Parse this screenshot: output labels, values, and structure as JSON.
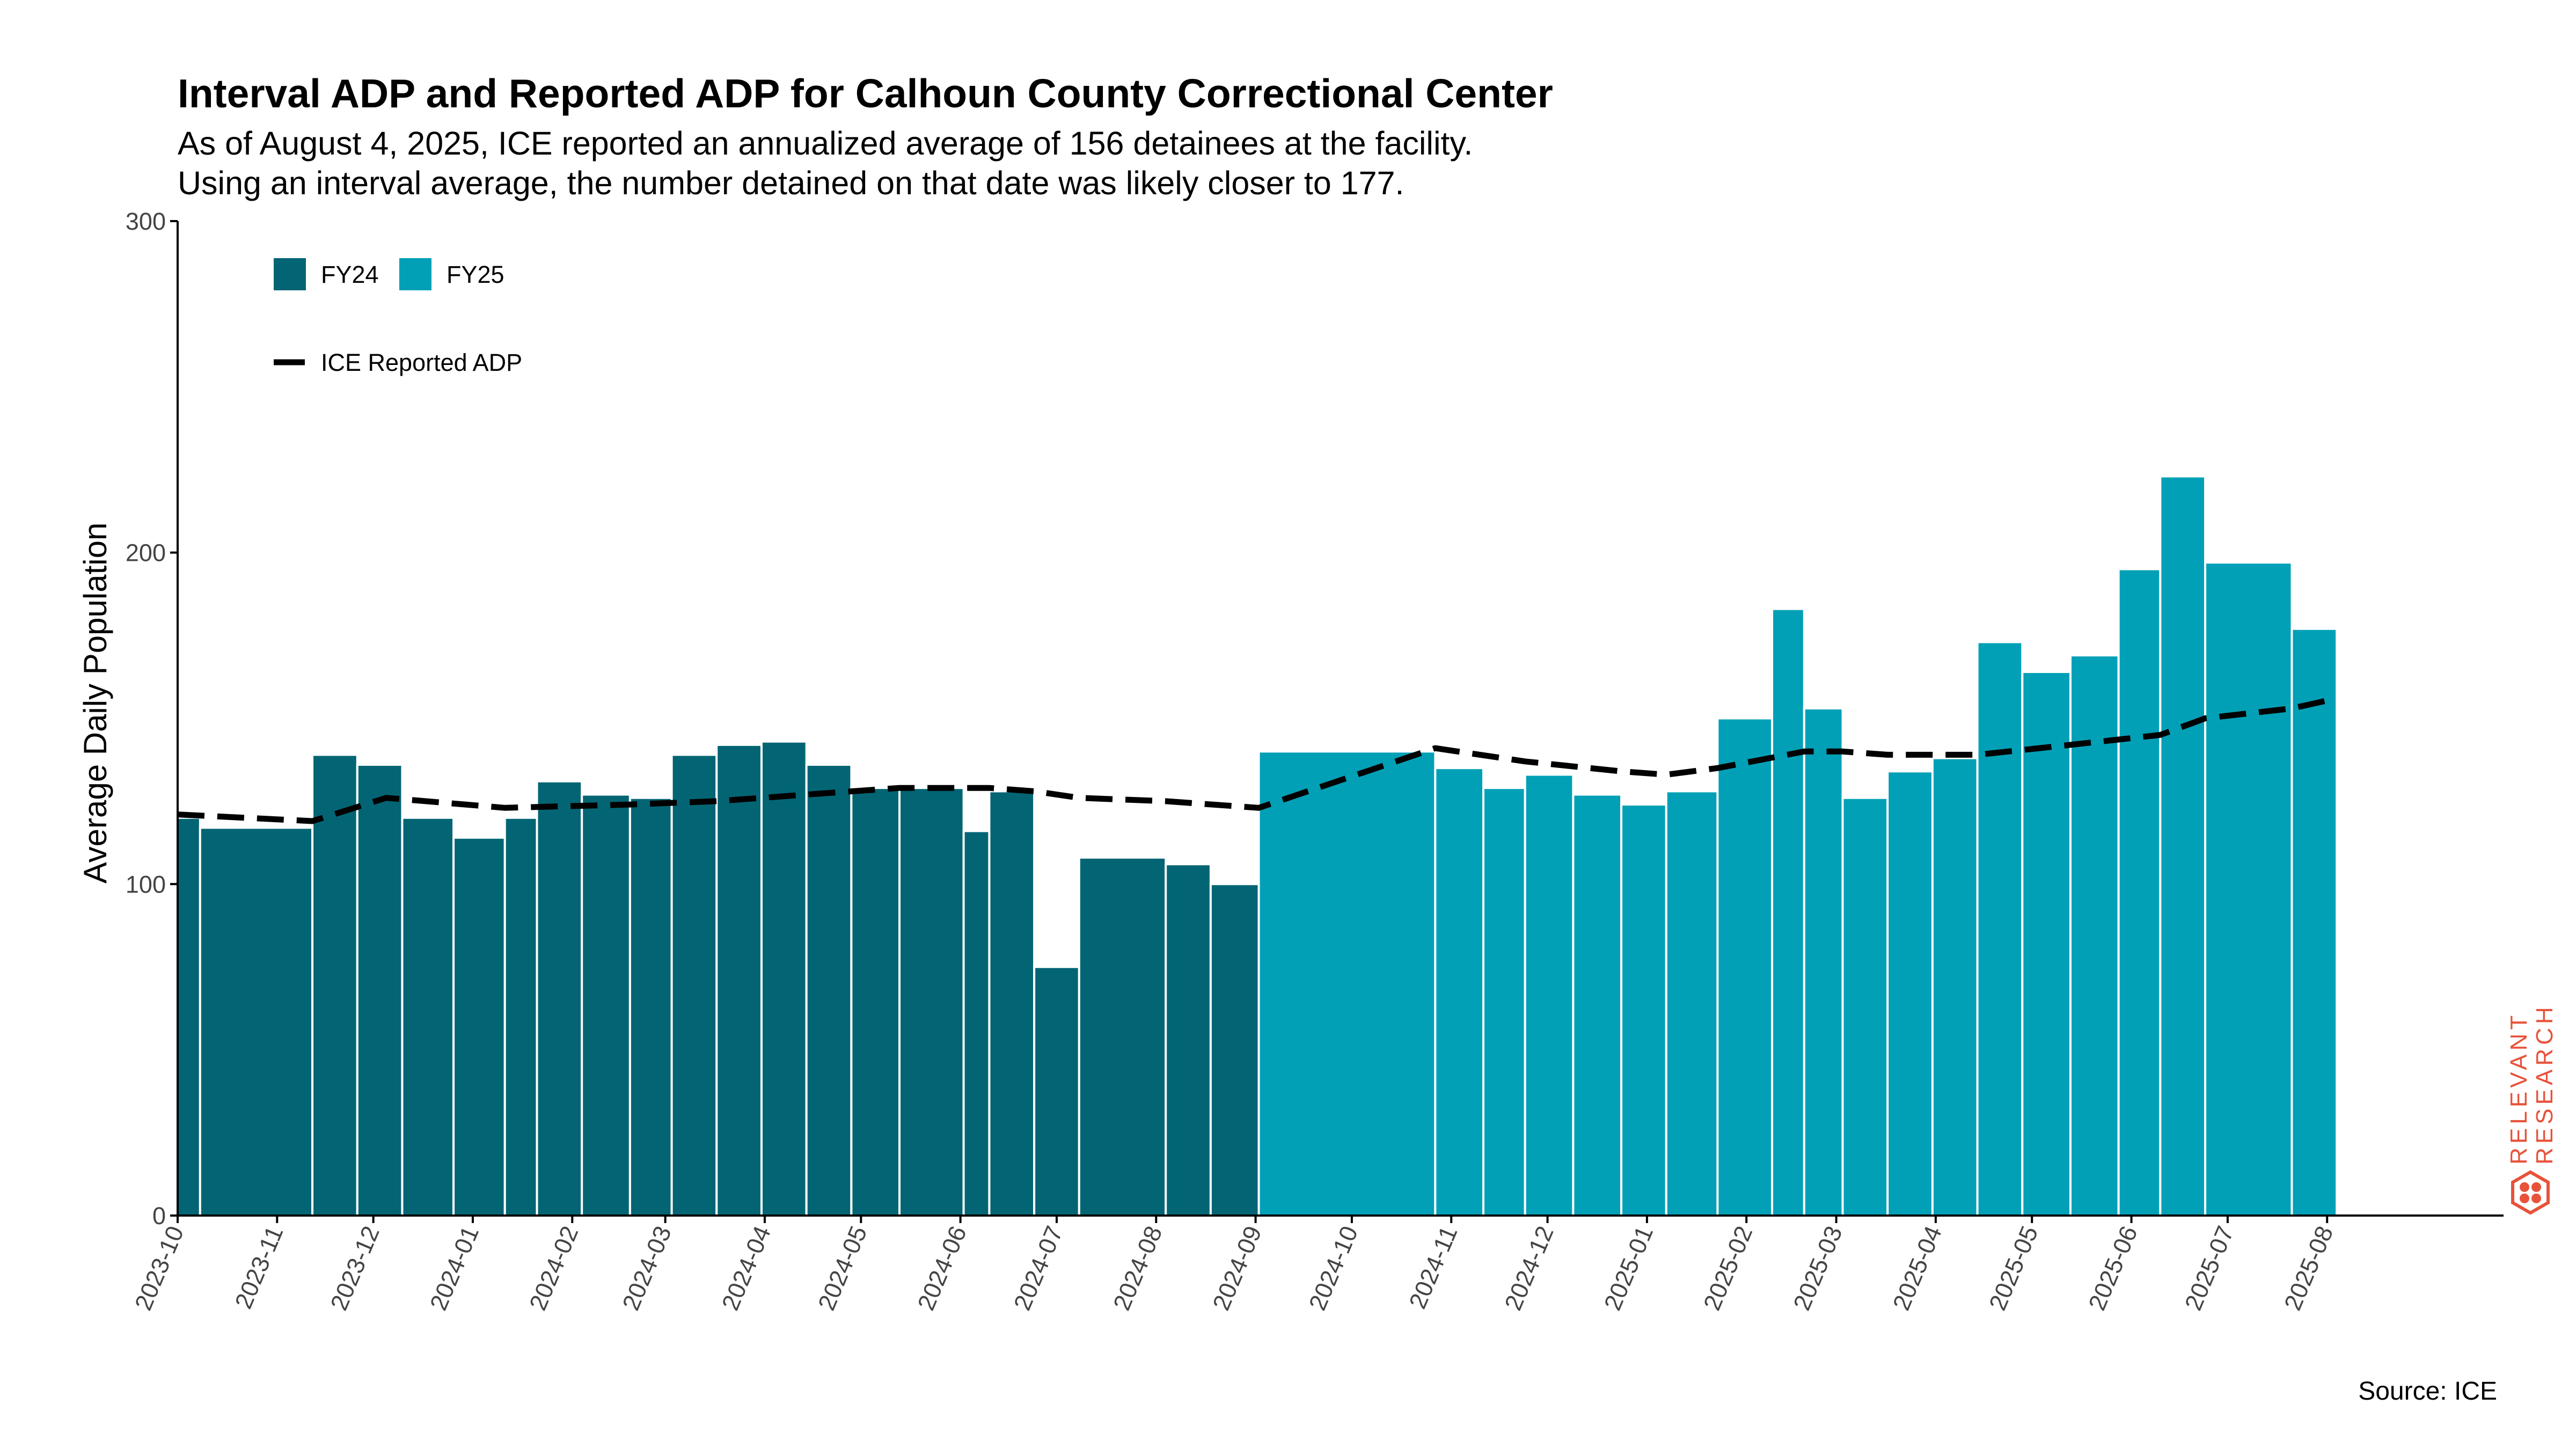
{
  "title": "Interval ADP and Reported ADP for Calhoun County Correctional Center",
  "subtitle_lines": [
    "As of August 4, 2025, ICE reported an annualized average of 156 detainees at the facility.",
    "Using an interval average, the number detained on that date was likely closer to 177."
  ],
  "source": "Source: ICE",
  "logo": {
    "line1": "RELEVANT",
    "line2": "RESEARCH",
    "color": "#e8523a"
  },
  "chart_data": {
    "type": "bar",
    "ylabel": "Average Daily Population",
    "xlabel": "",
    "ylim": [
      0,
      300
    ],
    "yticks": [
      0,
      100,
      200,
      300
    ],
    "xlim": [
      "2023-10-01",
      "2025-09-25"
    ],
    "xticks": [
      "2023-10",
      "2023-11",
      "2023-12",
      "2024-01",
      "2024-02",
      "2024-03",
      "2024-04",
      "2024-05",
      "2024-06",
      "2024-07",
      "2024-08",
      "2024-09",
      "2024-10",
      "2024-11",
      "2024-12",
      "2025-01",
      "2025-02",
      "2025-03",
      "2025-04",
      "2025-05",
      "2025-06",
      "2025-07",
      "2025-08"
    ],
    "legend": {
      "placement": "top-left",
      "items": [
        {
          "label": "FY24",
          "kind": "bar",
          "color": "#036574"
        },
        {
          "label": "FY25",
          "kind": "bar",
          "color": "#02a0b6"
        },
        {
          "label": "ICE Reported ADP",
          "kind": "dashed-line",
          "color": "#000000"
        }
      ]
    },
    "series": [
      {
        "name": "FY24",
        "color": "#036574",
        "intervals": [
          {
            "start": "2023-10-01",
            "end": "2023-10-08",
            "value": 120
          },
          {
            "start": "2023-10-08",
            "end": "2023-11-12",
            "value": 117
          },
          {
            "start": "2023-11-12",
            "end": "2023-11-26",
            "value": 139
          },
          {
            "start": "2023-11-26",
            "end": "2023-12-10",
            "value": 136
          },
          {
            "start": "2023-12-10",
            "end": "2023-12-26",
            "value": 120
          },
          {
            "start": "2023-12-26",
            "end": "2024-01-11",
            "value": 114
          },
          {
            "start": "2024-01-11",
            "end": "2024-01-21",
            "value": 120
          },
          {
            "start": "2024-01-21",
            "end": "2024-02-04",
            "value": 131
          },
          {
            "start": "2024-02-04",
            "end": "2024-02-19",
            "value": 127
          },
          {
            "start": "2024-02-19",
            "end": "2024-03-03",
            "value": 126
          },
          {
            "start": "2024-03-03",
            "end": "2024-03-17",
            "value": 139
          },
          {
            "start": "2024-03-17",
            "end": "2024-03-31",
            "value": 142
          },
          {
            "start": "2024-03-31",
            "end": "2024-04-14",
            "value": 143
          },
          {
            "start": "2024-04-14",
            "end": "2024-04-28",
            "value": 136
          },
          {
            "start": "2024-04-28",
            "end": "2024-05-13",
            "value": 129
          },
          {
            "start": "2024-05-13",
            "end": "2024-06-02",
            "value": 129
          },
          {
            "start": "2024-06-02",
            "end": "2024-06-10",
            "value": 116
          },
          {
            "start": "2024-06-10",
            "end": "2024-06-24",
            "value": 128
          },
          {
            "start": "2024-06-24",
            "end": "2024-07-08",
            "value": 75
          },
          {
            "start": "2024-07-08",
            "end": "2024-08-04",
            "value": 108
          },
          {
            "start": "2024-08-04",
            "end": "2024-08-18",
            "value": 106
          },
          {
            "start": "2024-08-18",
            "end": "2024-09-02",
            "value": 100
          }
        ]
      },
      {
        "name": "FY25",
        "color": "#02a0b6",
        "intervals": [
          {
            "start": "2024-09-02",
            "end": "2024-10-27",
            "value": 140
          },
          {
            "start": "2024-10-27",
            "end": "2024-11-11",
            "value": 135
          },
          {
            "start": "2024-11-11",
            "end": "2024-11-24",
            "value": 129
          },
          {
            "start": "2024-11-24",
            "end": "2024-12-09",
            "value": 133
          },
          {
            "start": "2024-12-09",
            "end": "2024-12-24",
            "value": 127
          },
          {
            "start": "2024-12-24",
            "end": "2025-01-07",
            "value": 124
          },
          {
            "start": "2025-01-07",
            "end": "2025-01-23",
            "value": 128
          },
          {
            "start": "2025-01-23",
            "end": "2025-02-09",
            "value": 150
          },
          {
            "start": "2025-02-09",
            "end": "2025-02-19",
            "value": 183
          },
          {
            "start": "2025-02-19",
            "end": "2025-03-03",
            "value": 153
          },
          {
            "start": "2025-03-03",
            "end": "2025-03-17",
            "value": 126
          },
          {
            "start": "2025-03-17",
            "end": "2025-03-31",
            "value": 134
          },
          {
            "start": "2025-03-31",
            "end": "2025-04-14",
            "value": 138
          },
          {
            "start": "2025-04-14",
            "end": "2025-04-28",
            "value": 173
          },
          {
            "start": "2025-04-28",
            "end": "2025-05-13",
            "value": 164
          },
          {
            "start": "2025-05-13",
            "end": "2025-05-28",
            "value": 169
          },
          {
            "start": "2025-05-28",
            "end": "2025-06-10",
            "value": 195
          },
          {
            "start": "2025-06-10",
            "end": "2025-06-24",
            "value": 223
          },
          {
            "start": "2025-06-24",
            "end": "2025-07-21",
            "value": 197
          },
          {
            "start": "2025-07-21",
            "end": "2025-08-04",
            "value": 177
          }
        ]
      },
      {
        "name": "ICE Reported ADP",
        "type": "line",
        "style": "dashed",
        "color": "#000000",
        "points": [
          {
            "x": "2023-10-01",
            "y": 121
          },
          {
            "x": "2023-11-12",
            "y": 119
          },
          {
            "x": "2023-12-05",
            "y": 126
          },
          {
            "x": "2024-01-11",
            "y": 123
          },
          {
            "x": "2024-02-19",
            "y": 124
          },
          {
            "x": "2024-03-17",
            "y": 125
          },
          {
            "x": "2024-04-14",
            "y": 127
          },
          {
            "x": "2024-05-13",
            "y": 129
          },
          {
            "x": "2024-06-10",
            "y": 129
          },
          {
            "x": "2024-06-24",
            "y": 128
          },
          {
            "x": "2024-07-08",
            "y": 126
          },
          {
            "x": "2024-08-04",
            "y": 125
          },
          {
            "x": "2024-09-02",
            "y": 123
          },
          {
            "x": "2024-10-27",
            "y": 141
          },
          {
            "x": "2024-11-24",
            "y": 137
          },
          {
            "x": "2024-12-24",
            "y": 134
          },
          {
            "x": "2025-01-07",
            "y": 133
          },
          {
            "x": "2025-01-23",
            "y": 135
          },
          {
            "x": "2025-02-19",
            "y": 140
          },
          {
            "x": "2025-03-03",
            "y": 140
          },
          {
            "x": "2025-03-17",
            "y": 139
          },
          {
            "x": "2025-04-14",
            "y": 139
          },
          {
            "x": "2025-05-13",
            "y": 142
          },
          {
            "x": "2025-06-10",
            "y": 145
          },
          {
            "x": "2025-06-24",
            "y": 150
          },
          {
            "x": "2025-07-21",
            "y": 153
          },
          {
            "x": "2025-08-04",
            "y": 156
          }
        ]
      }
    ]
  }
}
